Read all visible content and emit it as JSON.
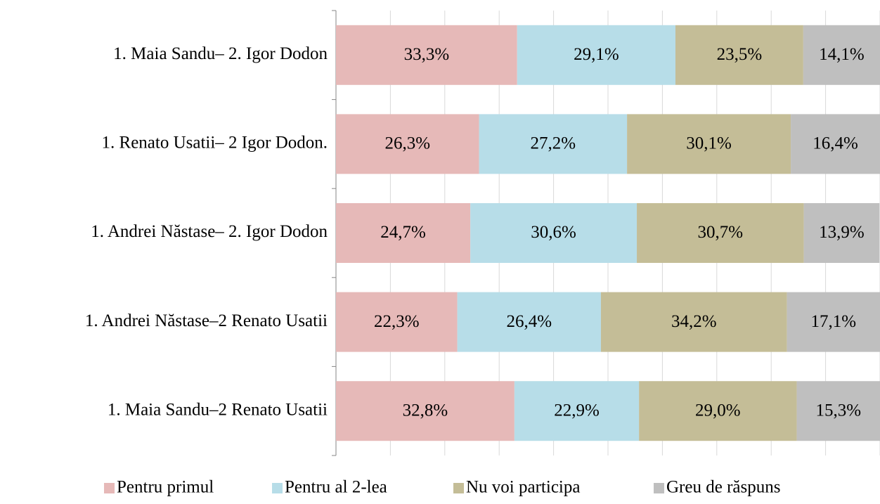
{
  "chart_data": {
    "type": "stacked-bar-horizontal",
    "categories": [
      "1. Maia Sandu– 2. Igor Dodon",
      "1. Renato Usatii– 2 Igor Dodon.",
      "1. Andrei Năstase– 2. Igor Dodon",
      "1. Andrei Năstase–2 Renato Usatii",
      "1. Maia Sandu–2 Renato Usatii"
    ],
    "series": [
      {
        "name": "Pentru primul",
        "color": "#e6b9b8",
        "values": [
          33.3,
          26.3,
          24.7,
          22.3,
          32.8
        ],
        "value_labels": [
          "33,3%",
          "26,3%",
          "24,7%",
          "22,3%",
          "32,8%"
        ]
      },
      {
        "name": "Pentru al 2-lea",
        "color": "#b7dde8",
        "values": [
          29.1,
          27.2,
          30.6,
          26.4,
          22.9
        ],
        "value_labels": [
          "29,1%",
          "27,2%",
          "30,6%",
          "26,4%",
          "22,9%"
        ]
      },
      {
        "name": "Nu voi participa",
        "color": "#c4bd97",
        "values": [
          23.5,
          30.1,
          30.7,
          34.2,
          29.0
        ],
        "value_labels": [
          "23,5%",
          "30,1%",
          "30,7%",
          "34,2%",
          "29,0%"
        ]
      },
      {
        "name": "Greu de răspuns",
        "color": "#bfbfbf",
        "values": [
          14.1,
          16.4,
          13.9,
          17.1,
          15.3
        ],
        "value_labels": [
          "14,1%",
          "16,4%",
          "13,9%",
          "17,1%",
          "15,3%"
        ]
      }
    ],
    "xlim": [
      0,
      100
    ],
    "xticks": [
      0,
      10,
      20,
      30,
      40,
      50,
      60,
      70,
      80,
      90,
      100
    ],
    "grid": true,
    "legend": "bottom"
  }
}
